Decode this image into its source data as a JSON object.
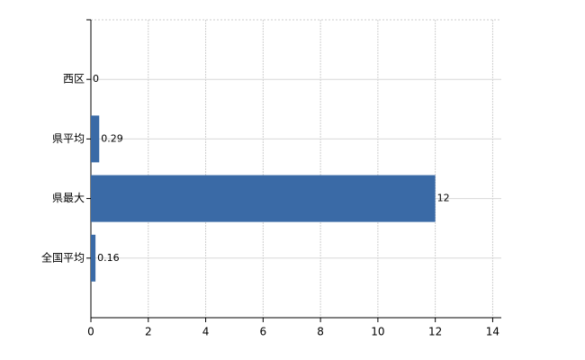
{
  "chart_data": {
    "type": "bar",
    "orientation": "horizontal",
    "categories": [
      "西区",
      "県平均",
      "県最大",
      "全国平均"
    ],
    "values": [
      0,
      0.29,
      12,
      0.16
    ],
    "color": "#3a6aa6",
    "xlim": [
      0,
      14.3
    ],
    "xticks": [
      0,
      2,
      4,
      6,
      8,
      10,
      12,
      14
    ],
    "grid": true
  }
}
